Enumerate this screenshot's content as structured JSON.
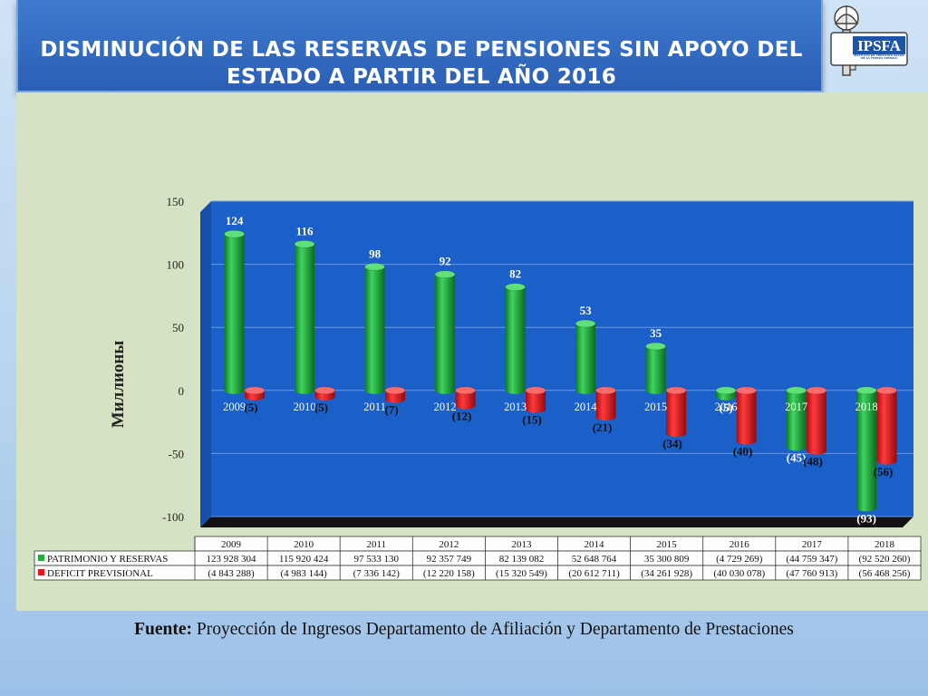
{
  "header": {
    "title_line1": "DISMINUCIÓN DE LAS RESERVAS DE PENSIONES SIN APOYO DEL",
    "title_line2": "ESTADO A PARTIR DEL AÑO 2016"
  },
  "logo": {
    "text": "IPSFA",
    "subtext": "INSTITUTO DE PREVISIÓN SOCIAL DE LA FUERZA ARMADA",
    "icon": "helmet-key-icon"
  },
  "source": {
    "label": "Fuente:",
    "text": " Proyección de Ingresos Departamento de Afiliación y Departamento de Prestaciones"
  },
  "colors": {
    "plot_bg": "#1b5fc8",
    "series_green": "#1fae3c",
    "series_red": "#e8161b",
    "panel_bg": "#d6e2c4"
  },
  "chart_data": {
    "type": "bar",
    "title": "",
    "ylabel": "Миллионы",
    "ylim": [
      -100,
      150
    ],
    "yticks": [
      "150",
      "100",
      "50",
      "0",
      "-50",
      "-100"
    ],
    "grid": true,
    "categories": [
      "2009",
      "2010",
      "2011",
      "2012",
      "2013",
      "2014",
      "2015",
      "2016",
      "2017",
      "2018"
    ],
    "series": [
      {
        "name": "PATRIMONIO Y RESERVAS",
        "color": "#1fae3c",
        "values": [
          124,
          116,
          98,
          92,
          82,
          53,
          35,
          -5,
          -45,
          -93
        ],
        "labels": [
          "124",
          "116",
          "98",
          "92",
          "82",
          "53",
          "35",
          "(5)",
          "(45)",
          "(93)"
        ],
        "table": [
          "123 928 304",
          "115 920 424",
          "97 533 130",
          "92 357 749",
          "82 139 082",
          "52 648 764",
          "35 300 809",
          "(4 729 269)",
          "(44 759 347)",
          "(92 520 260)"
        ]
      },
      {
        "name": "DEFICIT PREVISIONAL",
        "color": "#e8161b",
        "values": [
          -5,
          -5,
          -7,
          -12,
          -15,
          -21,
          -34,
          -40,
          -48,
          -56
        ],
        "labels": [
          "(5)",
          "(5)",
          "(7)",
          "(12)",
          "(15)",
          "(21)",
          "(34)",
          "(40)",
          "(48)",
          "(56)"
        ],
        "table": [
          "(4 843 288)",
          "(4 983 144)",
          "(7 336 142)",
          "(12 220 158)",
          "(15 320 549)",
          "(20 612 711)",
          "(34 261 928)",
          "(40 030 078)",
          "(47 760 913)",
          "(56 468 256)"
        ]
      }
    ]
  }
}
